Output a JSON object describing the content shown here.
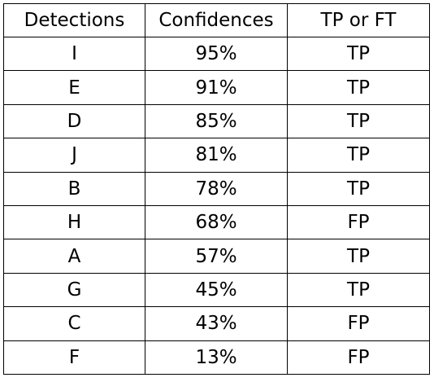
{
  "table": {
    "headers": [
      "Detections",
      "Confidences",
      "TP or FT"
    ],
    "rows": [
      [
        "I",
        "95%",
        "TP"
      ],
      [
        "E",
        "91%",
        "TP"
      ],
      [
        "D",
        "85%",
        "TP"
      ],
      [
        "J",
        "81%",
        "TP"
      ],
      [
        "B",
        "78%",
        "TP"
      ],
      [
        "H",
        "68%",
        "FP"
      ],
      [
        "A",
        "57%",
        "TP"
      ],
      [
        "G",
        "45%",
        "TP"
      ],
      [
        "C",
        "43%",
        "FP"
      ],
      [
        "F",
        "13%",
        "FP"
      ]
    ]
  }
}
